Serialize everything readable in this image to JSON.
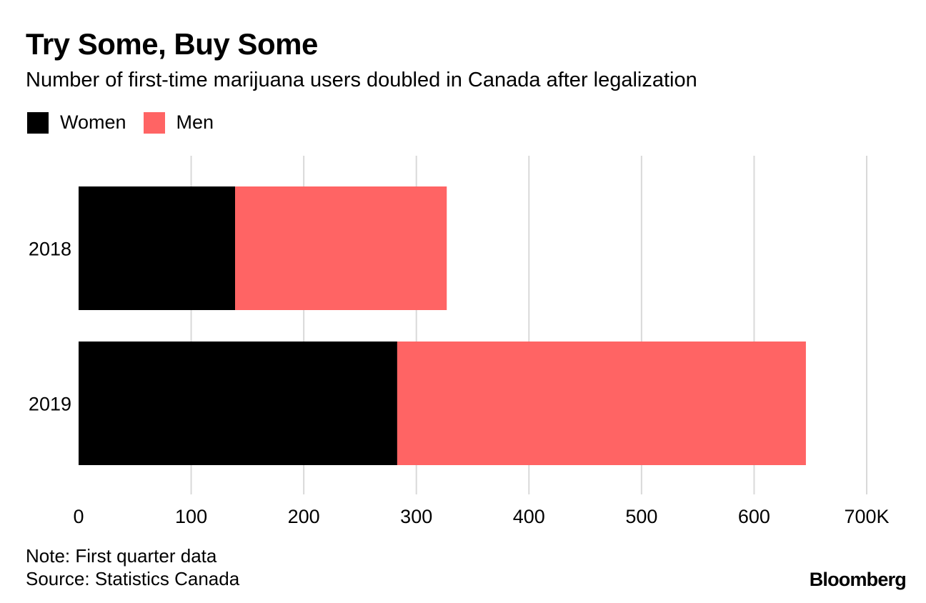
{
  "title": "Try Some, Buy Some",
  "subtitle": "Number of first-time marijuana users doubled in Canada after legalization",
  "legend": [
    {
      "label": "Women",
      "color": "#000000"
    },
    {
      "label": "Men",
      "color": "#ff6464"
    }
  ],
  "chart_data": {
    "type": "bar",
    "orientation": "horizontal",
    "stacked": true,
    "categories": [
      "2018",
      "2019"
    ],
    "series": [
      {
        "name": "Women",
        "color": "#000000",
        "values": [
          139,
          283
        ]
      },
      {
        "name": "Men",
        "color": "#ff6464",
        "values": [
          188,
          363
        ]
      }
    ],
    "xlim": [
      0,
      700
    ],
    "xticks": [
      "0",
      "100",
      "200",
      "300",
      "400",
      "500",
      "600",
      "700K"
    ],
    "xtick_values": [
      0,
      100,
      200,
      300,
      400,
      500,
      600,
      700
    ],
    "grid": true,
    "unit": "thousands"
  },
  "footer": {
    "note": "Note: First quarter data",
    "source": "Source: Statistics Canada",
    "brand": "Bloomberg"
  }
}
